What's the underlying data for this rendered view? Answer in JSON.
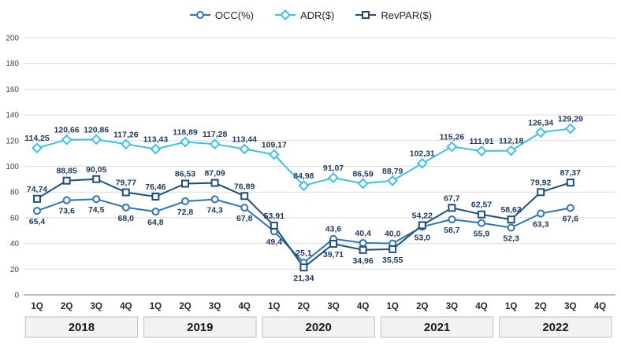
{
  "chart_data": {
    "type": "line",
    "title": "",
    "ylim": [
      0,
      200
    ],
    "y_ticks": [
      0,
      20,
      40,
      60,
      80,
      100,
      120,
      140,
      160,
      180,
      200
    ],
    "grid": true,
    "legend_position": "top-center",
    "categories": [
      "1Q",
      "2Q",
      "3Q",
      "4Q",
      "1Q",
      "2Q",
      "3Q",
      "4Q",
      "1Q",
      "2Q",
      "3Q",
      "4Q",
      "1Q",
      "2Q",
      "3Q",
      "4Q",
      "1Q",
      "2Q",
      "3Q",
      "4Q"
    ],
    "year_groups": [
      "2018",
      "2019",
      "2020",
      "2021",
      "2022"
    ],
    "series": [
      {
        "name": "OCC(%)",
        "marker": "circle",
        "color": "#2E75B6",
        "values": [
          65.4,
          73.6,
          74.5,
          68.0,
          64.8,
          72.8,
          74.3,
          67.8,
          49.4,
          25.1,
          43.6,
          40.4,
          40.0,
          53.0,
          58.7,
          55.9,
          52.3,
          63.3,
          67.6,
          null
        ],
        "labels": [
          "65,4",
          "73,6",
          "74,5",
          "68,0",
          "64,8",
          "72,8",
          "74,3",
          "67,8",
          "49,4",
          "25,1",
          "43,6",
          "40,4",
          "40,0",
          "53,0",
          "58,7",
          "55,9",
          "52,3",
          "63,3",
          "67,6",
          null
        ]
      },
      {
        "name": "ADR($)",
        "marker": "diamond",
        "color": "#3FC1E3",
        "values": [
          114.25,
          120.66,
          120.86,
          117.26,
          113.43,
          118.89,
          117.28,
          113.44,
          109.17,
          84.98,
          91.07,
          86.59,
          88.79,
          102.31,
          115.26,
          111.91,
          112.18,
          126.34,
          129.29,
          null
        ],
        "labels": [
          "114,25",
          "120,66",
          "120,86",
          "117,26",
          "113,43",
          "118,89",
          "117,28",
          "113,44",
          "109,17",
          "84,98",
          "91,07",
          "86,59",
          "88,79",
          "102,31",
          "115,26",
          "111,91",
          "112,18",
          "126,34",
          "129,29",
          null
        ]
      },
      {
        "name": "RevPAR($)",
        "marker": "square",
        "color": "#1F4E79",
        "values": [
          74.74,
          88.85,
          90.05,
          79.77,
          76.46,
          86.53,
          87.09,
          76.89,
          53.91,
          21.34,
          39.71,
          34.96,
          35.55,
          54.22,
          67.7,
          62.57,
          58.62,
          79.92,
          87.37,
          null
        ],
        "labels": [
          "74,74",
          "88,85",
          "90,05",
          "79,77",
          "76,46",
          "86,53",
          "87,09",
          "76,89",
          "53,91",
          "21,34",
          "39,71",
          "34,96",
          "35,55",
          "54,22",
          "67,7",
          "62,57",
          "58,62",
          "79,92",
          "87,37",
          null
        ]
      }
    ]
  }
}
